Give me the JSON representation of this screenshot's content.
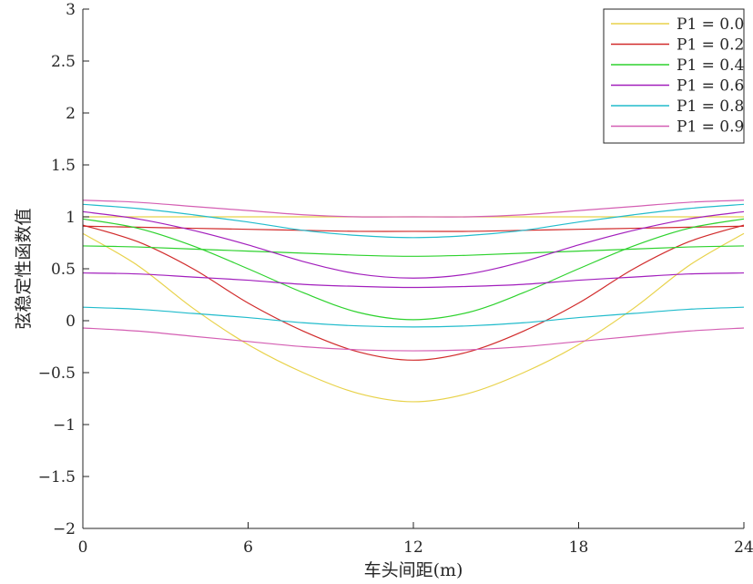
{
  "chart_data": {
    "type": "line",
    "title": "",
    "xlabel": "车头间距(m)",
    "ylabel": "弦稳定性函数值",
    "xlim": [
      0,
      24
    ],
    "ylim": [
      -2,
      3
    ],
    "x_ticks": [
      0,
      6,
      12,
      18,
      24
    ],
    "x_tick_labels": [
      "0",
      "6",
      "12",
      "18",
      "24"
    ],
    "y_ticks": [
      3,
      2.5,
      2,
      1.5,
      1,
      0.5,
      0,
      -0.5,
      -1,
      -1.5,
      -2
    ],
    "y_tick_labels": [
      "3",
      "2.5",
      "2",
      "1.5",
      "1",
      "0.5",
      "0",
      "−0.5",
      "−1",
      "−1.5",
      "−2"
    ],
    "grid": false,
    "legend_position": "top-right",
    "series": [
      {
        "name": "P1 = 0.0",
        "color": "#e8d24a",
        "x": [
          0,
          2,
          4,
          6,
          8,
          10,
          12,
          14,
          16,
          18,
          20,
          22,
          24
        ],
        "lines": [
          {
            "y": [
              0.84,
              0.53,
              0.12,
              -0.23,
              -0.5,
              -0.7,
              -0.78,
              -0.7,
              -0.5,
              -0.23,
              0.12,
              0.53,
              0.84
            ]
          },
          {
            "y": [
              1.0,
              1.0,
              1.0,
              1.0,
              1.0,
              1.0,
              1.0,
              1.0,
              1.0,
              1.0,
              1.0,
              1.0,
              1.0
            ]
          }
        ]
      },
      {
        "name": "P1 = 0.2",
        "color": "#d12b2b",
        "x": [
          0,
          2,
          4,
          6,
          8,
          10,
          12,
          14,
          16,
          18,
          20,
          22,
          24
        ],
        "lines": [
          {
            "y": [
              0.92,
              0.76,
              0.5,
              0.17,
              -0.1,
              -0.3,
              -0.38,
              -0.3,
              -0.1,
              0.17,
              0.5,
              0.76,
              0.92
            ]
          },
          {
            "y": [
              0.91,
              0.9,
              0.89,
              0.88,
              0.87,
              0.86,
              0.86,
              0.86,
              0.87,
              0.88,
              0.89,
              0.9,
              0.91
            ]
          }
        ]
      },
      {
        "name": "P1 = 0.4",
        "color": "#2ed22e",
        "x": [
          0,
          2,
          4,
          6,
          8,
          10,
          12,
          14,
          16,
          18,
          20,
          22,
          24
        ],
        "lines": [
          {
            "y": [
              0.98,
              0.89,
              0.72,
              0.5,
              0.27,
              0.08,
              0.01,
              0.08,
              0.27,
              0.5,
              0.72,
              0.89,
              0.98
            ]
          },
          {
            "y": [
              0.72,
              0.71,
              0.69,
              0.67,
              0.65,
              0.63,
              0.62,
              0.63,
              0.65,
              0.67,
              0.69,
              0.71,
              0.72
            ]
          }
        ]
      },
      {
        "name": "P1 = 0.6",
        "color": "#a21fbd",
        "x": [
          0,
          2,
          4,
          6,
          8,
          10,
          12,
          14,
          16,
          18,
          20,
          22,
          24
        ],
        "lines": [
          {
            "y": [
              1.05,
              0.98,
              0.87,
              0.73,
              0.57,
              0.45,
              0.41,
              0.45,
              0.57,
              0.73,
              0.87,
              0.98,
              1.05
            ]
          },
          {
            "y": [
              0.46,
              0.45,
              0.42,
              0.39,
              0.35,
              0.33,
              0.32,
              0.33,
              0.35,
              0.39,
              0.42,
              0.45,
              0.46
            ]
          }
        ]
      },
      {
        "name": "P1 = 0.8",
        "color": "#22bccc",
        "x": [
          0,
          2,
          4,
          6,
          8,
          10,
          12,
          14,
          16,
          18,
          20,
          22,
          24
        ],
        "lines": [
          {
            "y": [
              1.12,
              1.08,
              1.02,
              0.95,
              0.87,
              0.82,
              0.8,
              0.82,
              0.87,
              0.95,
              1.02,
              1.08,
              1.12
            ]
          },
          {
            "y": [
              0.13,
              0.11,
              0.07,
              0.03,
              -0.02,
              -0.05,
              -0.06,
              -0.05,
              -0.02,
              0.03,
              0.07,
              0.11,
              0.13
            ]
          }
        ]
      },
      {
        "name": "P1 = 0.9",
        "color": "#d45fb3",
        "x": [
          0,
          2,
          4,
          6,
          8,
          10,
          12,
          14,
          16,
          18,
          20,
          22,
          24
        ],
        "lines": [
          {
            "y": [
              1.16,
              1.14,
              1.1,
              1.06,
              1.02,
              1.0,
              1.0,
              1.0,
              1.02,
              1.06,
              1.1,
              1.14,
              1.16
            ]
          },
          {
            "y": [
              -0.07,
              -0.1,
              -0.15,
              -0.2,
              -0.25,
              -0.28,
              -0.29,
              -0.28,
              -0.25,
              -0.2,
              -0.15,
              -0.1,
              -0.07
            ]
          }
        ]
      }
    ]
  }
}
